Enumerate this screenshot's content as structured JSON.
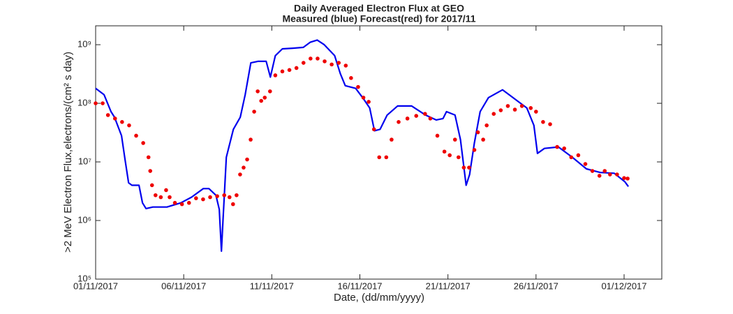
{
  "chart_data": {
    "type": "line",
    "title": "Daily Averaged Electron Flux at GEO",
    "subtitle": "Measured (blue) Forecast(red) for 2017/11",
    "x_label": "Date, (dd/mm/yyyy)",
    "y_label": ">2 MeV Electron Flux,electrons/(cm² s day)",
    "log_y": true,
    "xlim": [
      0,
      32.14
    ],
    "ylim": [
      100000,
      2100000000
    ],
    "xticks": [
      {
        "value": 0,
        "label": "01/11/2017"
      },
      {
        "value": 5,
        "label": "06/11/2017"
      },
      {
        "value": 10,
        "label": "11/11/2017"
      },
      {
        "value": 15,
        "label": "16/11/2017"
      },
      {
        "value": 20,
        "label": "21/11/2017"
      },
      {
        "value": 25,
        "label": "26/11/2017"
      },
      {
        "value": 30,
        "label": "01/12/2017"
      }
    ],
    "yticks": [
      {
        "value": 100000,
        "label": "10⁵"
      },
      {
        "value": 1000000,
        "label": "10⁶"
      },
      {
        "value": 10000000,
        "label": "10⁷"
      },
      {
        "value": 100000000,
        "label": "10⁸"
      },
      {
        "value": 1000000000,
        "label": "10⁹"
      }
    ],
    "series": [
      {
        "name": "Measured",
        "color": "#0000ee",
        "style": "line",
        "x": [
          0,
          0.48,
          0.87,
          1.07,
          1.47,
          1.67,
          1.87,
          2.06,
          2.46,
          2.66,
          2.86,
          3.25,
          4.05,
          4.84,
          5.44,
          6.11,
          6.43,
          6.83,
          7.02,
          7.14,
          7.2,
          7.42,
          7.82,
          8.21,
          8.49,
          8.81,
          9.21,
          9.68,
          9.92,
          10.2,
          10.6,
          11.19,
          11.79,
          12.18,
          12.58,
          12.98,
          13.57,
          13.89,
          14.17,
          14.76,
          15.16,
          15.56,
          15.83,
          16.15,
          16.55,
          17.14,
          17.94,
          18.73,
          19.33,
          19.72,
          19.92,
          20.4,
          20.71,
          21.03,
          21.23,
          21.5,
          21.83,
          22.3,
          23.1,
          23.69,
          24.48,
          24.88,
          25.08,
          25.48,
          26.27,
          27.06,
          27.86,
          28.65,
          29.44,
          30.04,
          30.24
        ],
        "values": [
          180000000,
          140000000,
          72000000,
          58000000,
          28000000,
          11000000,
          4400000,
          4000000,
          4000000,
          2000000,
          1600000,
          1700000,
          1700000,
          2000000,
          2500000,
          3500000,
          3500000,
          2700000,
          1550000,
          300000,
          680000,
          12000000,
          36000000,
          58000000,
          140000000,
          490000000,
          520000000,
          520000000,
          280000000,
          650000000,
          850000000,
          870000000,
          900000000,
          1100000000,
          1200000000,
          1000000000,
          650000000,
          320000000,
          200000000,
          180000000,
          125000000,
          83000000,
          34000000,
          36000000,
          63000000,
          90000000,
          90000000,
          63000000,
          52000000,
          55000000,
          72000000,
          63000000,
          24000000,
          4000000,
          6100000,
          21000000,
          72000000,
          125000000,
          170000000,
          125000000,
          83000000,
          42000000,
          14000000,
          17000000,
          18000000,
          12000000,
          7600000,
          6600000,
          6400000,
          4600000,
          3800000
        ]
      },
      {
        "name": "Forecast",
        "color": "#ee0000",
        "style": "markers",
        "x": [
          0,
          0.4,
          0.7,
          1.1,
          1.5,
          1.9,
          2.3,
          2.7,
          3.0,
          3.1,
          3.2,
          3.4,
          3.7,
          4.0,
          4.2,
          4.5,
          4.9,
          5.3,
          5.7,
          6.1,
          6.5,
          6.9,
          7.3,
          7.6,
          7.8,
          8.0,
          8.2,
          8.4,
          8.6,
          8.8,
          9.0,
          9.2,
          9.4,
          9.6,
          9.9,
          10.2,
          10.6,
          11.0,
          11.4,
          11.8,
          12.2,
          12.6,
          13.0,
          13.4,
          13.8,
          14.2,
          14.5,
          14.9,
          15.2,
          15.5,
          15.8,
          16.1,
          16.5,
          16.8,
          17.2,
          17.7,
          18.2,
          18.7,
          19.0,
          19.4,
          19.8,
          20.1,
          20.4,
          20.6,
          20.9,
          21.2,
          21.5,
          21.7,
          22.0,
          22.2,
          22.6,
          23.0,
          23.4,
          23.8,
          24.2,
          24.7,
          25.0,
          25.4,
          25.8,
          26.2,
          26.6,
          27.0,
          27.4,
          27.8,
          28.2,
          28.6,
          28.9,
          29.2,
          29.6,
          30.0,
          30.2
        ],
        "values": [
          100000000,
          100000000,
          63000000,
          55000000,
          48000000,
          42000000,
          28000000,
          21000000,
          12000000,
          7000000,
          4000000,
          2700000,
          2500000,
          3300000,
          2500000,
          2000000,
          1900000,
          2000000,
          2400000,
          2300000,
          2500000,
          2600000,
          2700000,
          2500000,
          1900000,
          2700000,
          6100000,
          8000000,
          11000000,
          24000000,
          72000000,
          160000000,
          110000000,
          125000000,
          160000000,
          300000000,
          350000000,
          370000000,
          400000000,
          490000000,
          580000000,
          580000000,
          520000000,
          460000000,
          490000000,
          440000000,
          270000000,
          190000000,
          125000000,
          106000000,
          36000000,
          12000000,
          12000000,
          24000000,
          48000000,
          55000000,
          61000000,
          66000000,
          55000000,
          28000000,
          15000000,
          13000000,
          24000000,
          12000000,
          8000000,
          8000000,
          16000000,
          32000000,
          24000000,
          42000000,
          66000000,
          76000000,
          90000000,
          78000000,
          90000000,
          83000000,
          72000000,
          48000000,
          44000000,
          18000000,
          17000000,
          12000000,
          13000000,
          9200000,
          7000000,
          5800000,
          7000000,
          6100000,
          6100000,
          5300000,
          5200000
        ]
      }
    ]
  }
}
